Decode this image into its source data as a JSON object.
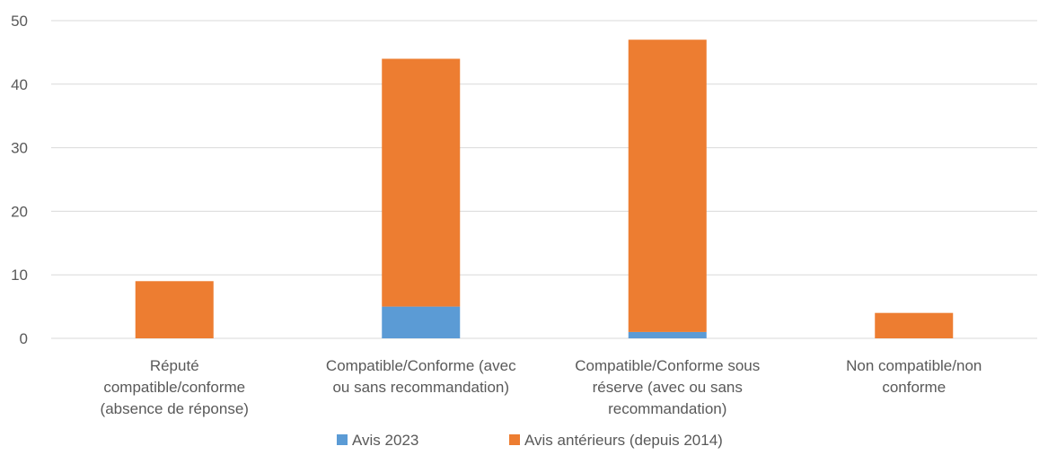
{
  "chart_data": {
    "type": "bar",
    "stacked": true,
    "categories": [
      [
        "Réputé",
        "compatible/conforme",
        "(absence de réponse)"
      ],
      [
        "Compatible/Conforme (avec",
        "ou sans recommandation)"
      ],
      [
        "Compatible/Conforme sous",
        "réserve (avec ou sans",
        "recommandation)"
      ],
      [
        "Non compatible/non",
        "conforme"
      ]
    ],
    "series": [
      {
        "name": "Avis 2023",
        "color": "#5b9bd5",
        "values": [
          0,
          5,
          1,
          0
        ]
      },
      {
        "name": "Avis antérieurs (depuis 2014)",
        "color": "#ed7d31",
        "values": [
          9,
          39,
          46,
          4
        ]
      }
    ],
    "ylim": [
      0,
      50
    ],
    "yticks": [
      0,
      10,
      20,
      30,
      40,
      50
    ],
    "grid": true,
    "legend": "bottom",
    "gridline_color": "#d9d9d9"
  }
}
